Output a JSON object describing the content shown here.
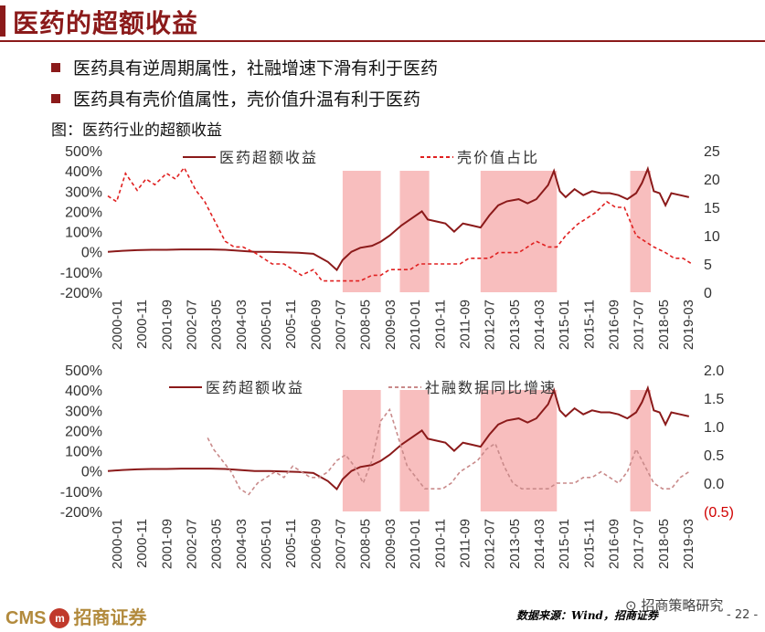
{
  "page": {
    "title": "医药的超额收益",
    "bullets": [
      "医药具有逆周期属性，社融增速下滑有利于医药",
      "医药具有壳价值属性，壳价值升温有利于医药"
    ],
    "caption": "图：医药行业的超额收益",
    "colors": {
      "brand": "#8b1a1a",
      "shade": "#f7b3b3",
      "dashed_series": "#e02020",
      "dashed_series_2": "#c98a8a"
    }
  },
  "footer": {
    "logo_text": "CMS",
    "logo_cn": "招商证券",
    "source": "数据来源：Wind，招商证券",
    "wechat": "招商策略研究",
    "page_number": "- 22 -"
  },
  "chart_data": [
    {
      "type": "line",
      "x_tick_labels": [
        "2000-01",
        "2000-11",
        "2001-09",
        "2002-07",
        "2003-05",
        "2004-03",
        "2005-01",
        "2005-11",
        "2006-09",
        "2007-07",
        "2008-05",
        "2009-03",
        "2010-01",
        "2010-11",
        "2011-09",
        "2012-07",
        "2013-05",
        "2014-03",
        "2015-01",
        "2015-11",
        "2016-09",
        "2017-07",
        "2018-05",
        "2019-03"
      ],
      "y_left_tick_labels": [
        "500%",
        "400%",
        "300%",
        "200%",
        "100%",
        "0%",
        "-100%",
        "-200%"
      ],
      "y_right_tick_labels": [
        "25",
        "20",
        "15",
        "10",
        "5",
        "0"
      ],
      "ylim_left": [
        -200,
        500
      ],
      "ylim_right": [
        0,
        25
      ],
      "shaded_periods": [
        [
          2008.0,
          2009.3
        ],
        [
          2009.95,
          2010.95
        ],
        [
          2012.7,
          2015.3
        ],
        [
          2017.8,
          2018.5
        ]
      ],
      "series": [
        {
          "name": "医药超额收益",
          "axis": "left",
          "x": [
            2000.0,
            2000.5,
            2001.0,
            2001.5,
            2002.0,
            2002.5,
            2003.0,
            2003.5,
            2004.0,
            2004.5,
            2005.0,
            2005.5,
            2006.0,
            2006.5,
            2007.0,
            2007.5,
            2007.8,
            2008.0,
            2008.3,
            2008.6,
            2009.0,
            2009.3,
            2009.6,
            2010.0,
            2010.3,
            2010.7,
            2010.9,
            2011.2,
            2011.5,
            2011.8,
            2012.1,
            2012.4,
            2012.7,
            2013.0,
            2013.3,
            2013.6,
            2014.0,
            2014.3,
            2014.6,
            2015.0,
            2015.2,
            2015.4,
            2015.6,
            2015.9,
            2016.2,
            2016.5,
            2016.8,
            2017.1,
            2017.4,
            2017.7,
            2018.0,
            2018.2,
            2018.4,
            2018.6,
            2018.8,
            2019.0,
            2019.2,
            2019.5,
            2019.8
          ],
          "values": [
            0,
            5,
            8,
            10,
            10,
            12,
            12,
            12,
            10,
            5,
            0,
            0,
            -2,
            -5,
            -10,
            -50,
            -90,
            -40,
            0,
            20,
            30,
            50,
            80,
            130,
            160,
            200,
            160,
            150,
            140,
            100,
            140,
            130,
            120,
            180,
            230,
            250,
            260,
            240,
            260,
            330,
            400,
            300,
            270,
            310,
            280,
            300,
            290,
            290,
            280,
            260,
            290,
            340,
            410,
            300,
            290,
            230,
            290,
            280,
            270
          ]
        },
        {
          "name": "壳价值占比",
          "axis": "right",
          "x": [
            2000.0,
            2000.3,
            2000.6,
            2001.0,
            2001.3,
            2001.6,
            2002.0,
            2002.3,
            2002.6,
            2003.0,
            2003.3,
            2003.6,
            2004.0,
            2004.3,
            2004.6,
            2005.0,
            2005.3,
            2005.6,
            2006.0,
            2006.3,
            2006.6,
            2007.0,
            2007.3,
            2007.6,
            2008.0,
            2008.3,
            2008.6,
            2009.0,
            2009.3,
            2009.6,
            2010.0,
            2010.3,
            2010.6,
            2011.0,
            2011.3,
            2011.6,
            2012.0,
            2012.3,
            2012.6,
            2013.0,
            2013.3,
            2013.6,
            2014.0,
            2014.3,
            2014.6,
            2015.0,
            2015.3,
            2015.6,
            2016.0,
            2016.3,
            2016.6,
            2017.0,
            2017.3,
            2017.6,
            2018.0,
            2018.3,
            2018.6,
            2019.0,
            2019.3,
            2019.6,
            2019.9
          ],
          "values": [
            17,
            16,
            21,
            18,
            20,
            19,
            21,
            20,
            22,
            18,
            16,
            13,
            9,
            8,
            8,
            7,
            6,
            5,
            5,
            4,
            3,
            4,
            2,
            2,
            2,
            2,
            2,
            3,
            3,
            4,
            4,
            4,
            5,
            5,
            5,
            5,
            5,
            6,
            6,
            6,
            7,
            7,
            7,
            8,
            9,
            8,
            8,
            10,
            12,
            13,
            14,
            16,
            15,
            15,
            10,
            9,
            8,
            7,
            6,
            6,
            5
          ]
        }
      ]
    },
    {
      "type": "line",
      "x_tick_labels": [
        "2000-01",
        "2000-11",
        "2001-09",
        "2002-07",
        "2003-05",
        "2004-03",
        "2005-01",
        "2005-11",
        "2006-09",
        "2007-07",
        "2008-05",
        "2009-03",
        "2010-01",
        "2010-11",
        "2011-09",
        "2012-07",
        "2013-05",
        "2014-03",
        "2015-01",
        "2015-11",
        "2016-09",
        "2017-07",
        "2018-05",
        "2019-03"
      ],
      "y_left_tick_labels": [
        "500%",
        "400%",
        "300%",
        "200%",
        "100%",
        "0%",
        "-100%",
        "-200%"
      ],
      "y_right_tick_labels": [
        "2.0",
        "1.5",
        "1.0",
        "0.5",
        "0.0",
        "(0.5)"
      ],
      "ylim_left": [
        -200,
        500
      ],
      "ylim_right": [
        -0.5,
        2.0
      ],
      "shaded_periods": [
        [
          2008.0,
          2009.3
        ],
        [
          2009.95,
          2010.95
        ],
        [
          2012.7,
          2015.3
        ],
        [
          2017.8,
          2018.5
        ]
      ],
      "series": [
        {
          "name": "医药超额收益",
          "axis": "left",
          "x": [
            2000.0,
            2000.5,
            2001.0,
            2001.5,
            2002.0,
            2002.5,
            2003.0,
            2003.5,
            2004.0,
            2004.5,
            2005.0,
            2005.5,
            2006.0,
            2006.5,
            2007.0,
            2007.5,
            2007.8,
            2008.0,
            2008.3,
            2008.6,
            2009.0,
            2009.3,
            2009.6,
            2010.0,
            2010.3,
            2010.7,
            2010.9,
            2011.2,
            2011.5,
            2011.8,
            2012.1,
            2012.4,
            2012.7,
            2013.0,
            2013.3,
            2013.6,
            2014.0,
            2014.3,
            2014.6,
            2015.0,
            2015.2,
            2015.4,
            2015.6,
            2015.9,
            2016.2,
            2016.5,
            2016.8,
            2017.1,
            2017.4,
            2017.7,
            2018.0,
            2018.2,
            2018.4,
            2018.6,
            2018.8,
            2019.0,
            2019.2,
            2019.5,
            2019.8
          ],
          "values": [
            0,
            5,
            8,
            10,
            10,
            12,
            12,
            12,
            10,
            5,
            0,
            0,
            -2,
            -5,
            -10,
            -50,
            -90,
            -40,
            0,
            20,
            30,
            50,
            80,
            130,
            160,
            200,
            160,
            150,
            140,
            100,
            140,
            130,
            120,
            180,
            230,
            250,
            260,
            240,
            260,
            330,
            400,
            300,
            270,
            310,
            280,
            300,
            290,
            290,
            280,
            260,
            290,
            340,
            410,
            300,
            290,
            230,
            290,
            280,
            270
          ]
        },
        {
          "name": "社融数据同比增速",
          "axis": "right",
          "x": [
            2003.4,
            2003.6,
            2003.9,
            2004.2,
            2004.5,
            2004.8,
            2005.1,
            2005.4,
            2005.7,
            2006.0,
            2006.3,
            2006.6,
            2006.9,
            2007.2,
            2007.5,
            2007.8,
            2008.1,
            2008.4,
            2008.7,
            2009.0,
            2009.3,
            2009.6,
            2009.9,
            2010.2,
            2010.5,
            2010.8,
            2011.1,
            2011.4,
            2011.7,
            2012.0,
            2012.3,
            2012.6,
            2012.9,
            2013.2,
            2013.5,
            2013.8,
            2014.1,
            2014.4,
            2014.7,
            2015.0,
            2015.3,
            2015.6,
            2015.9,
            2016.2,
            2016.5,
            2016.8,
            2017.1,
            2017.4,
            2017.7,
            2018.0,
            2018.3,
            2018.6,
            2018.9,
            2019.2,
            2019.5,
            2019.8
          ],
          "values": [
            0.8,
            0.6,
            0.4,
            0.2,
            -0.1,
            -0.2,
            0.0,
            0.1,
            0.2,
            0.1,
            0.3,
            0.2,
            0.1,
            0.1,
            0.2,
            0.4,
            0.5,
            0.3,
            0.0,
            0.4,
            1.1,
            1.3,
            0.8,
            0.3,
            0.1,
            -0.1,
            -0.1,
            -0.1,
            0.0,
            0.2,
            0.3,
            0.4,
            0.6,
            0.7,
            0.3,
            0.0,
            -0.1,
            -0.1,
            -0.1,
            -0.1,
            0.0,
            0.0,
            0.0,
            0.1,
            0.1,
            0.2,
            0.1,
            0.0,
            0.2,
            0.6,
            0.3,
            0.0,
            -0.1,
            -0.1,
            0.1,
            0.2
          ]
        }
      ]
    }
  ]
}
